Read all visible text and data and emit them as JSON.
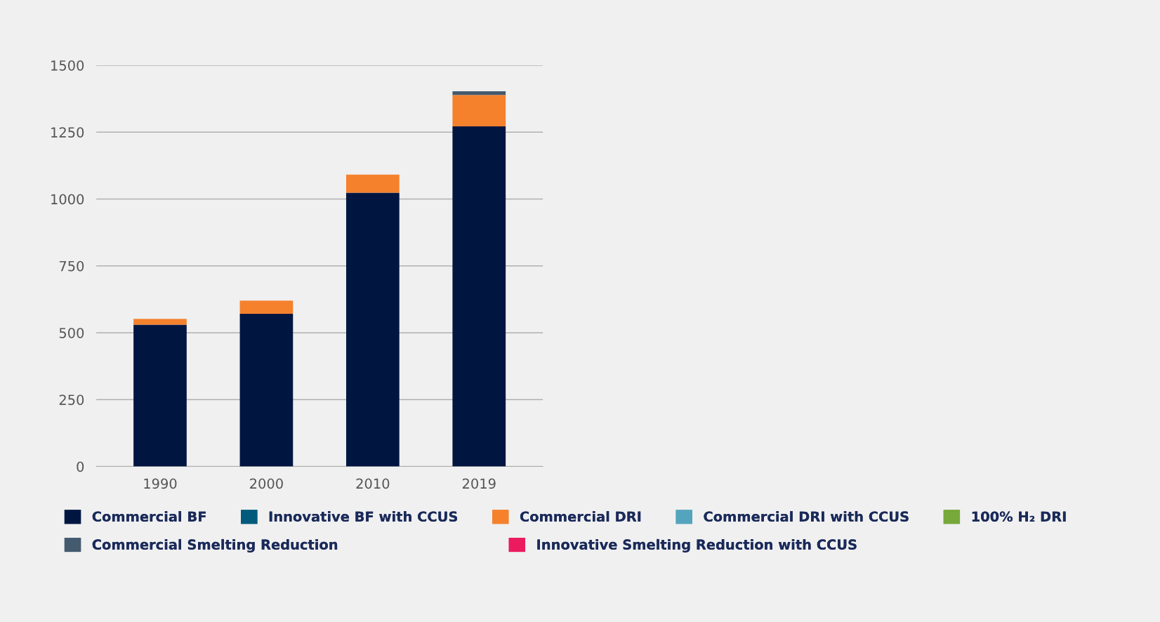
{
  "chart_data": {
    "type": "bar",
    "stacked": true,
    "categories": [
      "1990",
      "2000",
      "2010",
      "2019"
    ],
    "series": [
      {
        "name": "Commercial BF",
        "color": "#001641",
        "values": [
          530,
          571,
          1024,
          1272
        ]
      },
      {
        "name": "Innovative BF with CCUS",
        "color": "#005a7c",
        "values": [
          0,
          0,
          0,
          0
        ]
      },
      {
        "name": "Commercial DRI",
        "color": "#f5812d",
        "values": [
          22,
          49,
          67,
          117
        ]
      },
      {
        "name": "Commercial DRI with CCUS",
        "color": "#55a4be",
        "values": [
          0,
          0,
          0,
          0
        ]
      },
      {
        "name": "100% H₂ DRI",
        "color": "#76a83a",
        "values": [
          0,
          0,
          0,
          0
        ]
      },
      {
        "name": "Commercial Smelting Reduction",
        "color": "#445a6e",
        "values": [
          0,
          0,
          0,
          14
        ]
      },
      {
        "name": "Innovative Smelting Reduction with CCUS",
        "color": "#ec1a5e",
        "values": [
          0,
          0,
          0,
          0
        ]
      }
    ],
    "ylim": [
      0,
      1500
    ],
    "yticks": [
      0,
      250,
      500,
      750,
      1000,
      1250,
      1500
    ],
    "grid": "y",
    "legend": "bottom"
  }
}
